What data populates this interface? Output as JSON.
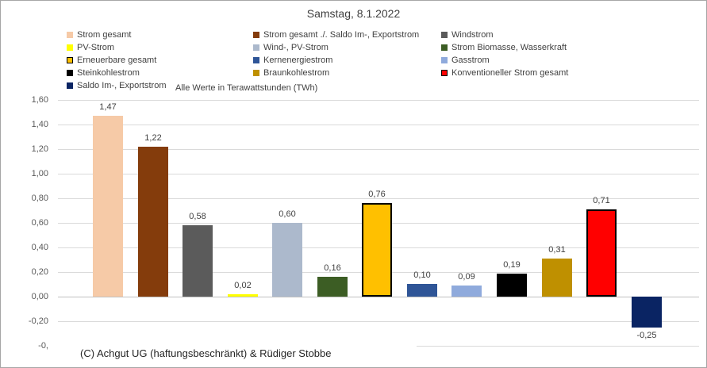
{
  "window": {
    "background": "#ffffff",
    "border_color": "#a6a6a6"
  },
  "chart_data": {
    "type": "bar",
    "title": "Samstag, 8.1.2022",
    "note": "Alle Werte in Terawattstunden (TWh)",
    "footer": "(C) Achgut UG (haftungsbeschränkt) & Rüdiger Stobbe",
    "xlabel": "",
    "ylabel": "",
    "ylim": [
      -0.4,
      1.6
    ],
    "grid": true,
    "legend_position": "top",
    "value_decimal_style": "comma",
    "series": [
      {
        "name": "Strom gesamt",
        "value": 1.47,
        "label": "1,47",
        "color": "#f6caa7",
        "border": null
      },
      {
        "name": "Strom gesamt ./. Saldo Im-, Exportstrom",
        "value": 1.22,
        "label": "1,22",
        "color": "#843c0c",
        "border": null
      },
      {
        "name": "Windstrom",
        "value": 0.58,
        "label": "0,58",
        "color": "#5b5b5b",
        "border": null
      },
      {
        "name": "PV-Strom",
        "value": 0.02,
        "label": "0,02",
        "color": "#ffff00",
        "border": null
      },
      {
        "name": "Wind-, PV-Strom",
        "value": 0.6,
        "label": "0,60",
        "color": "#acb9cc",
        "border": null
      },
      {
        "name": "Strom Biomasse, Wasserkraft",
        "value": 0.16,
        "label": "0,16",
        "color": "#3c5d24",
        "border": null
      },
      {
        "name": "Erneuerbare gesamt",
        "value": 0.76,
        "label": "0,76",
        "color": "#ffc000",
        "border": "#000000"
      },
      {
        "name": "Kernenergiestrom",
        "value": 0.1,
        "label": "0,10",
        "color": "#2f5597",
        "border": null
      },
      {
        "name": "Gasstrom",
        "value": 0.09,
        "label": "0,09",
        "color": "#8faadc",
        "border": null
      },
      {
        "name": "Steinkohlestrom",
        "value": 0.19,
        "label": "0,19",
        "color": "#000000",
        "border": null
      },
      {
        "name": "Braunkohlestrom",
        "value": 0.31,
        "label": "0,31",
        "color": "#bf9000",
        "border": null
      },
      {
        "name": "Konventioneller Strom gesamt",
        "value": 0.71,
        "label": "0,71",
        "color": "#ff0000",
        "border": "#000000"
      },
      {
        "name": "Saldo Im-, Exportstrom",
        "value": -0.25,
        "label": "-0,25",
        "color": "#0a2463",
        "border": null
      }
    ],
    "y_ticks": [
      {
        "value": 1.6,
        "label": "1,60"
      },
      {
        "value": 1.4,
        "label": "1,40"
      },
      {
        "value": 1.2,
        "label": "1,20"
      },
      {
        "value": 1.0,
        "label": "1,00"
      },
      {
        "value": 0.8,
        "label": "0,80"
      },
      {
        "value": 0.6,
        "label": "0,60"
      },
      {
        "value": 0.4,
        "label": "0,40"
      },
      {
        "value": 0.2,
        "label": "0,20"
      },
      {
        "value": 0.0,
        "label": "0,00"
      },
      {
        "value": -0.2,
        "label": "-0,20"
      },
      {
        "value": -0.4,
        "label": "-0,"
      }
    ],
    "legend_columns": [
      [
        "Strom gesamt",
        "PV-Strom",
        "Erneuerbare gesamt",
        "Steinkohlestrom",
        "Saldo Im-, Exportstrom"
      ],
      [
        "Strom gesamt ./. Saldo Im-, Exportstrom",
        "Wind-, PV-Strom",
        "Kernenergiestrom",
        "Braunkohlestrom"
      ],
      [
        "Windstrom",
        "Strom Biomasse, Wasserkraft",
        "Gasstrom",
        "Konventioneller Strom gesamt"
      ]
    ]
  }
}
